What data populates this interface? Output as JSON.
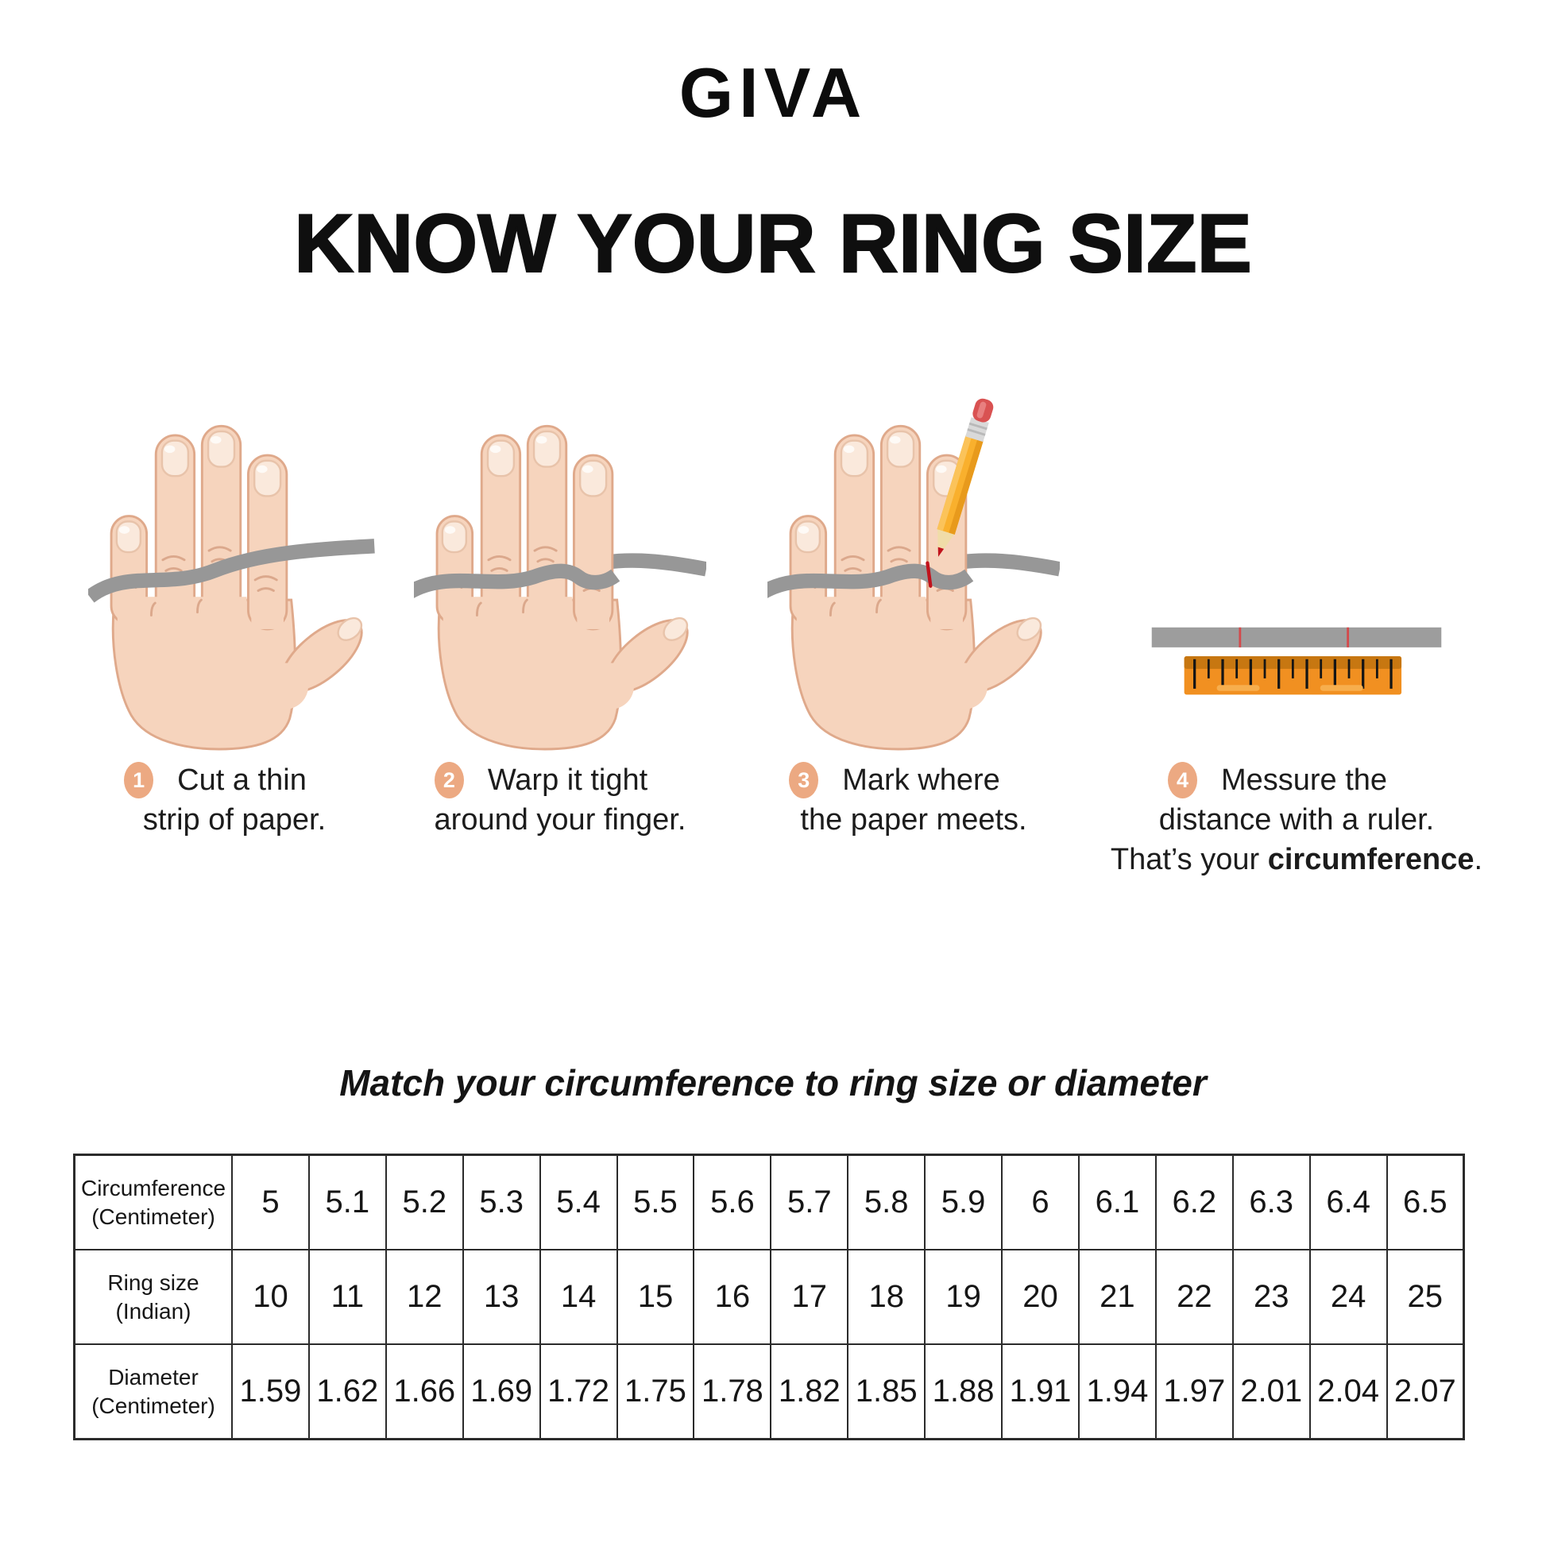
{
  "brand": "GIVA",
  "title": "KNOW YOUR RING SIZE",
  "steps": [
    {
      "number": "1",
      "caption_line1": "Cut a thin",
      "caption_line2": "strip of paper."
    },
    {
      "number": "2",
      "caption_line1": "Warp it tight",
      "caption_line2": "around your finger."
    },
    {
      "number": "3",
      "caption_line1": "Mark where",
      "caption_line2": "the paper meets."
    },
    {
      "number": "4",
      "caption_line1": "Messure the",
      "caption_line2": "distance with a ruler.",
      "caption_line3": {
        "prefix": "That’s your ",
        "bold": "circumference",
        "suffix": "."
      }
    }
  ],
  "icons": {
    "step1": "hand-with-paper-strip",
    "step2": "hand-strip-wrapped-around-finger",
    "step3": "hand-pencil-marking-strip",
    "step4": "paper-strip-and-ruler",
    "badge": "numbered-circle-badge"
  },
  "colors": {
    "skin": "#F6D4BD",
    "skin_outline": "#DFA98B",
    "nail": "#FAE9DC",
    "paper_strip_gray": "#979797",
    "badge_peach": "#ECA982",
    "pencil_yellow": "#F9B02D",
    "eraser_red": "#D95252",
    "ruler_orange": "#F19021",
    "ruler_band": "#C77711",
    "mark_red": "#C1121C",
    "text": "#1a1a1a",
    "table_border": "#2b2b2b"
  },
  "table": {
    "caption": "Match your circumference to ring size or diameter",
    "rows": [
      {
        "header_line1": "Circumference",
        "header_line2": "(Centimeter)",
        "values": [
          "5",
          "5.1",
          "5.2",
          "5.3",
          "5.4",
          "5.5",
          "5.6",
          "5.7",
          "5.8",
          "5.9",
          "6",
          "6.1",
          "6.2",
          "6.3",
          "6.4",
          "6.5"
        ]
      },
      {
        "header_line1": "Ring size",
        "header_line2": "(Indian)",
        "values": [
          "10",
          "11",
          "12",
          "13",
          "14",
          "15",
          "16",
          "17",
          "18",
          "19",
          "20",
          "21",
          "22",
          "23",
          "24",
          "25"
        ]
      },
      {
        "header_line1": "Diameter",
        "header_line2": "(Centimeter)",
        "values": [
          "1.59",
          "1.62",
          "1.66",
          "1.69",
          "1.72",
          "1.75",
          "1.78",
          "1.82",
          "1.85",
          "1.88",
          "1.91",
          "1.94",
          "1.97",
          "2.01",
          "2.04",
          "2.07"
        ]
      }
    ]
  }
}
